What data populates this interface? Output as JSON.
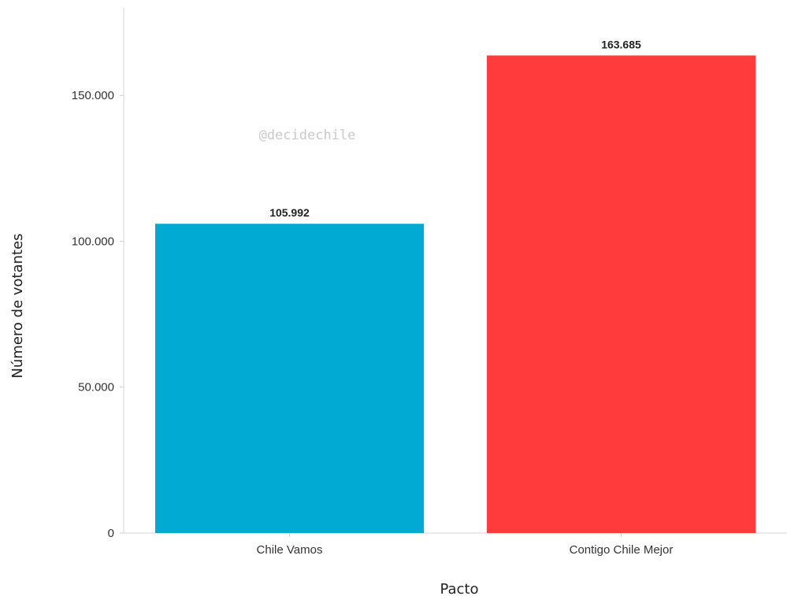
{
  "chart_data": {
    "type": "bar",
    "categories": [
      "Chile Vamos",
      "Contigo Chile Mejor"
    ],
    "values": [
      105992,
      163685
    ],
    "value_labels": [
      "105.992",
      "163.685"
    ],
    "colors": [
      "#00aad3",
      "#ff3b3b"
    ],
    "xlabel": "Pacto",
    "ylabel": "Número de votantes",
    "ylim": [
      0,
      180000
    ],
    "yticks": [
      0,
      50000,
      100000,
      150000
    ],
    "ytick_labels": [
      "0",
      "50.000",
      "100.000",
      "150.000"
    ],
    "grid": false,
    "watermark": "@decidechile"
  }
}
